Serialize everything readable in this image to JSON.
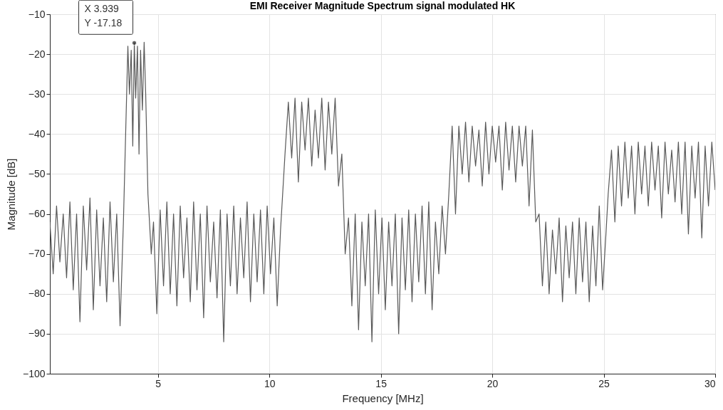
{
  "chart_data": {
    "type": "line",
    "title": "EMI Receiver Magnitude Spectrum signal modulated HK",
    "xlabel": "Frequency [MHz]",
    "ylabel": "Magnitude [dB]",
    "xlim": [
      0.15,
      30
    ],
    "xticks": [
      5,
      10,
      15,
      20,
      25,
      30
    ],
    "ylim": [
      -100,
      -10
    ],
    "yticks": [
      -100,
      -90,
      -80,
      -70,
      -60,
      -50,
      -40,
      -30,
      -20,
      -10
    ],
    "grid": true,
    "annotations": [
      {
        "text": "X 3.939\nY -17.18",
        "x": 3.939,
        "y": -17.18
      }
    ],
    "series": [
      {
        "color": "#595959",
        "x": [
          0.15,
          0.3,
          0.45,
          0.6,
          0.75,
          0.9,
          1.05,
          1.2,
          1.35,
          1.5,
          1.65,
          1.8,
          1.95,
          2.1,
          2.25,
          2.4,
          2.55,
          2.7,
          2.85,
          3.0,
          3.15,
          3.3,
          3.45,
          3.55,
          3.65,
          3.72,
          3.8,
          3.87,
          3.939,
          4.0,
          4.08,
          4.15,
          4.22,
          4.3,
          4.38,
          4.45,
          4.55,
          4.7,
          4.8,
          4.95,
          5.1,
          5.25,
          5.4,
          5.55,
          5.7,
          5.85,
          6.0,
          6.15,
          6.3,
          6.45,
          6.6,
          6.75,
          6.9,
          7.05,
          7.2,
          7.35,
          7.5,
          7.65,
          7.8,
          7.95,
          8.1,
          8.25,
          8.4,
          8.55,
          8.7,
          8.85,
          9.0,
          9.15,
          9.3,
          9.45,
          9.6,
          9.75,
          9.9,
          10.05,
          10.2,
          10.35,
          10.5,
          10.7,
          10.85,
          11.0,
          11.15,
          11.3,
          11.45,
          11.6,
          11.75,
          11.9,
          12.05,
          12.2,
          12.35,
          12.5,
          12.65,
          12.8,
          12.95,
          13.1,
          13.25,
          13.4,
          13.55,
          13.7,
          13.85,
          14.0,
          14.15,
          14.3,
          14.45,
          14.6,
          14.75,
          14.9,
          15.05,
          15.2,
          15.35,
          15.5,
          15.65,
          15.8,
          15.95,
          16.1,
          16.25,
          16.4,
          16.55,
          16.7,
          16.85,
          17.0,
          17.15,
          17.3,
          17.45,
          17.6,
          17.75,
          17.9,
          18.05,
          18.2,
          18.35,
          18.5,
          18.65,
          18.8,
          18.95,
          19.1,
          19.25,
          19.4,
          19.55,
          19.7,
          19.85,
          20.0,
          20.15,
          20.3,
          20.45,
          20.6,
          20.75,
          20.9,
          21.05,
          21.2,
          21.35,
          21.5,
          21.65,
          21.8,
          21.95,
          22.1,
          22.25,
          22.4,
          22.55,
          22.7,
          22.85,
          23.0,
          23.15,
          23.3,
          23.45,
          23.6,
          23.75,
          23.9,
          24.05,
          24.2,
          24.35,
          24.5,
          24.65,
          24.8,
          24.95,
          25.1,
          25.2,
          25.35,
          25.5,
          25.65,
          25.8,
          25.95,
          26.1,
          26.25,
          26.4,
          26.55,
          26.7,
          26.85,
          27.0,
          27.15,
          27.3,
          27.45,
          27.6,
          27.75,
          27.9,
          28.05,
          28.2,
          28.35,
          28.5,
          28.65,
          28.8,
          28.95,
          29.1,
          29.25,
          29.4,
          29.55,
          29.7,
          29.85,
          30.0
        ],
        "values": [
          -62,
          -75,
          -58,
          -72,
          -60,
          -76,
          -57,
          -79,
          -60,
          -87,
          -58,
          -74,
          -56,
          -84,
          -59,
          -78,
          -61,
          -82,
          -57,
          -77,
          -60,
          -88,
          -62,
          -40,
          -18,
          -30,
          -19,
          -43,
          -17.18,
          -31,
          -18,
          -45,
          -19,
          -34,
          -17,
          -30,
          -55,
          -70,
          -62,
          -85,
          -59,
          -78,
          -57,
          -80,
          -60,
          -83,
          -58,
          -76,
          -61,
          -82,
          -57,
          -79,
          -60,
          -86,
          -58,
          -77,
          -62,
          -81,
          -59,
          -92,
          -60,
          -78,
          -58,
          -80,
          -61,
          -76,
          -57,
          -82,
          -60,
          -77,
          -59,
          -80,
          -58,
          -75,
          -61,
          -83,
          -64,
          -45,
          -32,
          -46,
          -31,
          -52,
          -32,
          -44,
          -31,
          -48,
          -34,
          -46,
          -31,
          -49,
          -32,
          -45,
          -31,
          -53,
          -45,
          -70,
          -61,
          -83,
          -60,
          -89,
          -62,
          -78,
          -60,
          -92,
          -59,
          -80,
          -61,
          -84,
          -62,
          -78,
          -60,
          -90,
          -61,
          -79,
          -59,
          -82,
          -60,
          -77,
          -58,
          -80,
          -57,
          -84,
          -62,
          -75,
          -58,
          -70,
          -55,
          -38,
          -60,
          -38,
          -50,
          -37,
          -52,
          -38,
          -48,
          -39,
          -53,
          -37,
          -50,
          -38,
          -47,
          -38,
          -54,
          -37,
          -49,
          -38,
          -52,
          -38,
          -48,
          -38,
          -58,
          -39,
          -62,
          -60,
          -78,
          -62,
          -80,
          -64,
          -75,
          -61,
          -82,
          -63,
          -76,
          -62,
          -80,
          -61,
          -77,
          -62,
          -82,
          -63,
          -78,
          -58,
          -79,
          -65,
          -55,
          -44,
          -62,
          -43,
          -58,
          -42,
          -56,
          -43,
          -60,
          -42,
          -55,
          -43,
          -58,
          -42,
          -54,
          -43,
          -61,
          -42,
          -55,
          -44,
          -57,
          -42,
          -60,
          -42,
          -65,
          -43,
          -56,
          -42,
          -66,
          -43,
          -58,
          -42,
          -54
        ]
      }
    ]
  }
}
